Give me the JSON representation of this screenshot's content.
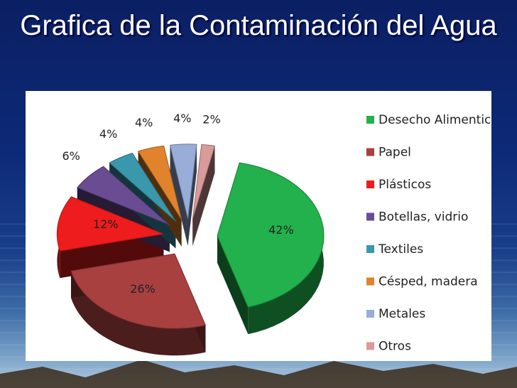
{
  "slide": {
    "title": "Grafica de la Contaminación del Agua"
  },
  "chart_data": {
    "type": "pie",
    "title": "",
    "legend_placement": "right",
    "slices": [
      {
        "name": "Desecho Alimenticio",
        "value": 42,
        "label": "42%",
        "color": "#22b14c"
      },
      {
        "name": "Papel",
        "value": 26,
        "label": "26%",
        "color": "#a84040"
      },
      {
        "name": "Plásticos",
        "value": 12,
        "label": "12%",
        "color": "#ee1c1c"
      },
      {
        "name": "Botellas, vidrio",
        "value": 6,
        "label": "6%",
        "color": "#6a4c93"
      },
      {
        "name": "Textiles",
        "value": 4,
        "label": "4%",
        "color": "#3a98ad"
      },
      {
        "name": "Césped, madera",
        "value": 4,
        "label": "4%",
        "color": "#e0832c"
      },
      {
        "name": "Metales",
        "value": 4,
        "label": "4%",
        "color": "#98aed8"
      },
      {
        "name": "Otros",
        "value": 2,
        "label": "2%",
        "color": "#d99a9a"
      }
    ]
  }
}
